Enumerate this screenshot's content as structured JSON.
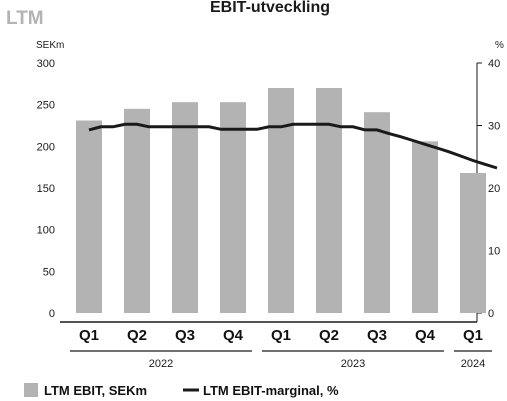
{
  "chart_data": {
    "type": "bar",
    "title": "LTM",
    "heading": "EBIT-utveckling",
    "left_unit": "SEKm",
    "right_unit": "%",
    "ylim": [
      0,
      300
    ],
    "y_ticks": [
      0,
      50,
      100,
      150,
      200,
      250,
      300
    ],
    "y2lim": [
      0,
      40
    ],
    "y2_ticks": [
      0,
      10,
      20,
      30,
      40
    ],
    "categories": [
      "Q1",
      "Q2",
      "Q3",
      "Q4",
      "Q1",
      "Q2",
      "Q3",
      "Q4",
      "Q1"
    ],
    "years": [
      {
        "label": "2022",
        "from": 0,
        "to": 3
      },
      {
        "label": "2023",
        "from": 4,
        "to": 7
      },
      {
        "label": "2024",
        "from": 8,
        "to": 8
      }
    ],
    "series": [
      {
        "name": "LTM EBIT, SEKm",
        "type": "bar",
        "axis": "left",
        "color": "#b3b3b3",
        "values": [
          231,
          245,
          253,
          253,
          270,
          270,
          241,
          206,
          168
        ]
      },
      {
        "name": "LTM EBIT-marginal, %",
        "type": "line",
        "axis": "right",
        "color": "#1a1a1a",
        "points": [
          [
            0.0,
            29.3
          ],
          [
            0.25,
            29.8
          ],
          [
            0.5,
            29.8
          ],
          [
            0.75,
            30.2
          ],
          [
            1.0,
            30.2
          ],
          [
            1.25,
            29.8
          ],
          [
            1.75,
            29.8
          ],
          [
            2.0,
            29.8
          ],
          [
            2.5,
            29.8
          ],
          [
            2.75,
            29.4
          ],
          [
            3.5,
            29.4
          ],
          [
            3.75,
            29.8
          ],
          [
            4.0,
            29.8
          ],
          [
            4.25,
            30.2
          ],
          [
            5.0,
            30.2
          ],
          [
            5.25,
            29.8
          ],
          [
            5.5,
            29.8
          ],
          [
            5.75,
            29.3
          ],
          [
            6.0,
            29.3
          ],
          [
            6.25,
            28.7
          ],
          [
            6.5,
            28.2
          ],
          [
            6.75,
            27.6
          ],
          [
            7.0,
            27.0
          ],
          [
            7.25,
            26.4
          ],
          [
            7.5,
            25.8
          ],
          [
            7.75,
            25.1
          ],
          [
            8.0,
            24.4
          ],
          [
            8.25,
            23.8
          ],
          [
            8.5,
            23.2
          ]
        ]
      }
    ]
  }
}
